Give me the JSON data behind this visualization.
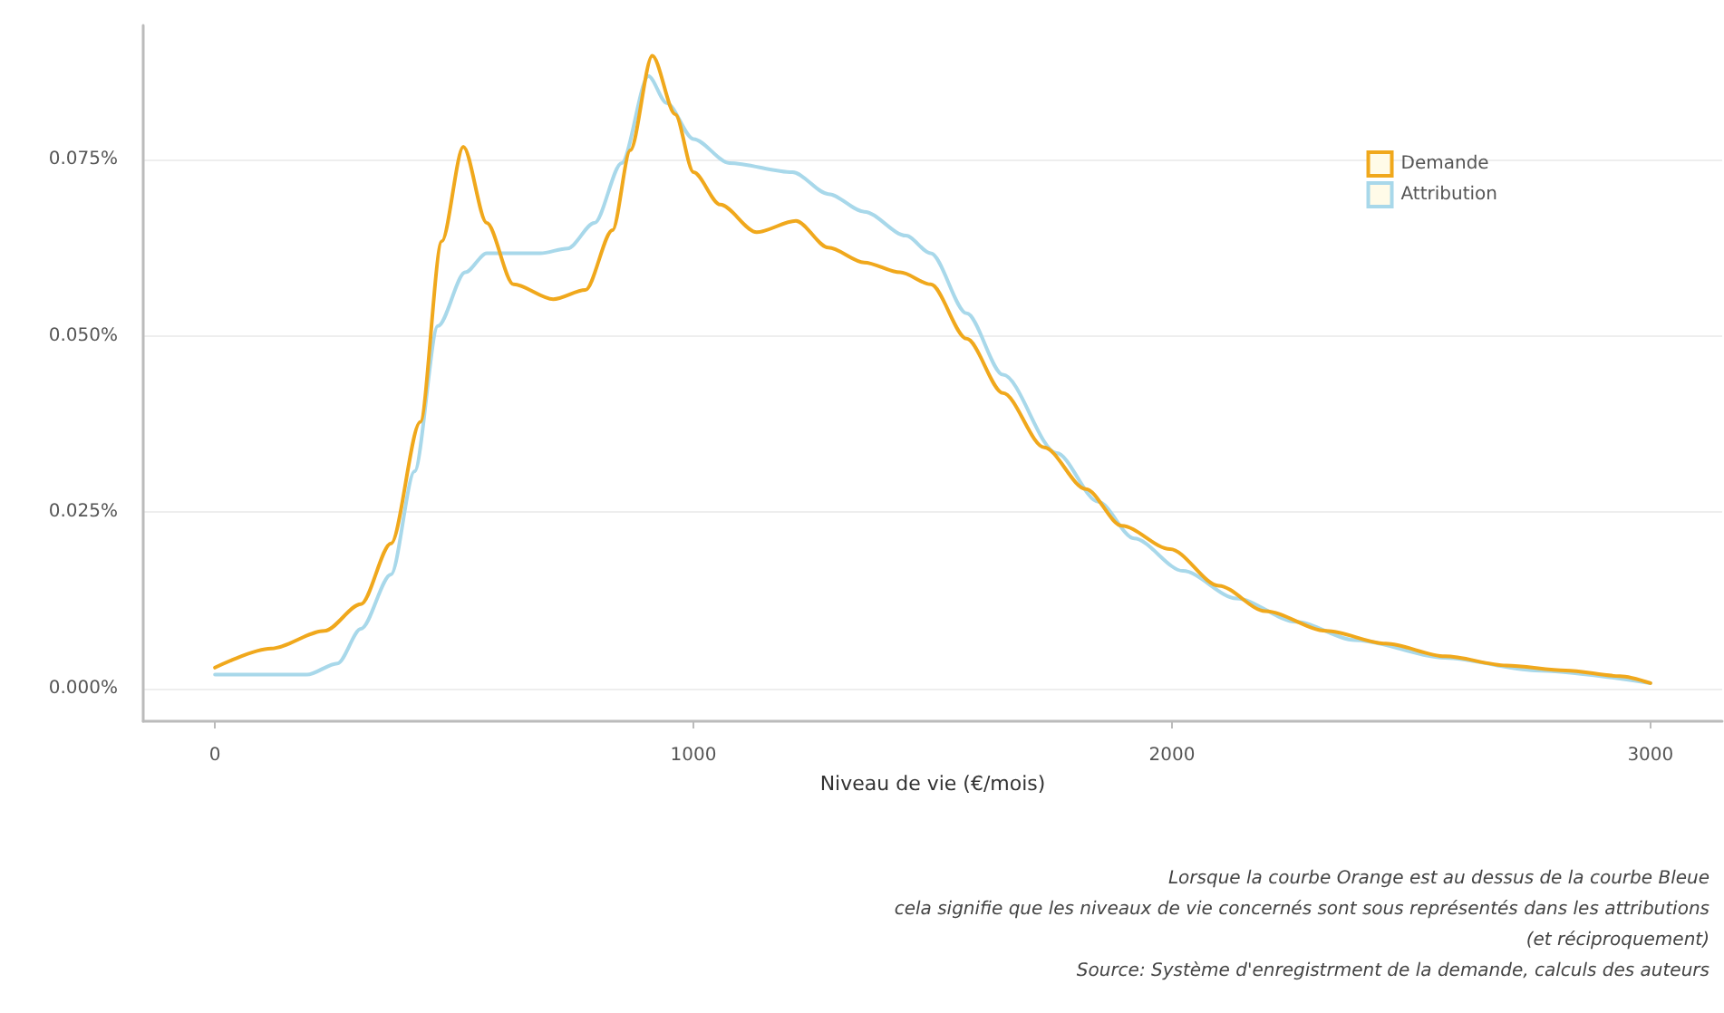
{
  "chart_data": {
    "type": "line",
    "xlabel": "Niveau de vie (€/mois)",
    "annotations": [
      "Lorsque la courbe Orange est au dessus de la courbe Bleue",
      "cela signifie que les niveaux de vie concernés sont sous représentés dans les attributions",
      "(et réciproquement)",
      "Source: Système d'enregistrment de la demande, calculs des auteurs"
    ],
    "series": [
      {
        "name": "Demande",
        "color": "#f0a81c",
        "x": [
          0,
          117,
          229,
          305,
          368,
          429,
          474,
          519,
          568,
          624,
          707,
          774,
          831,
          868,
          914,
          962,
          1000,
          1056,
          1132,
          1214,
          1282,
          1357,
          1432,
          1496,
          1571,
          1647,
          1733,
          1820,
          1895,
          1996,
          2098,
          2195,
          2323,
          2447,
          2571,
          2699,
          2823,
          2936,
          3000
        ],
        "values": [
          0.003,
          0.0057,
          0.0082,
          0.012,
          0.0206,
          0.0378,
          0.0634,
          0.0768,
          0.066,
          0.0573,
          0.0552,
          0.0565,
          0.065,
          0.0763,
          0.0897,
          0.0814,
          0.0732,
          0.0686,
          0.0647,
          0.0663,
          0.0625,
          0.0604,
          0.059,
          0.0573,
          0.0496,
          0.0419,
          0.0342,
          0.0283,
          0.0231,
          0.0198,
          0.0146,
          0.011,
          0.0082,
          0.0064,
          0.0046,
          0.0033,
          0.0026,
          0.0018,
          0.0008
        ]
      },
      {
        "name": "Attribution",
        "color": "#a8d8ea",
        "x": [
          0,
          192,
          256,
          305,
          368,
          417,
          466,
          523,
          568,
          680,
          737,
          793,
          850,
          906,
          944,
          1000,
          1075,
          1207,
          1282,
          1357,
          1444,
          1496,
          1571,
          1647,
          1759,
          1846,
          1921,
          2023,
          2135,
          2259,
          2383,
          2571,
          2759,
          3000
        ],
        "values": [
          0.002,
          0.002,
          0.0036,
          0.0085,
          0.0162,
          0.0308,
          0.0514,
          0.059,
          0.0617,
          0.0617,
          0.0624,
          0.066,
          0.0745,
          0.0868,
          0.083,
          0.0779,
          0.0745,
          0.0732,
          0.0701,
          0.0676,
          0.0642,
          0.0617,
          0.0532,
          0.0445,
          0.0334,
          0.0265,
          0.0213,
          0.0167,
          0.0128,
          0.0095,
          0.0069,
          0.0044,
          0.0026,
          0.0008
        ]
      }
    ],
    "xlim": [
      -150,
      3150
    ],
    "xticks": [
      0,
      1000,
      2000,
      3000
    ],
    "ylim": [
      -0.0046,
      0.094
    ],
    "yticks": [
      {
        "value": 0,
        "label": "0.000%"
      },
      {
        "value": 0.025,
        "label": "0.025%"
      },
      {
        "value": 0.05,
        "label": "0.050%"
      },
      {
        "value": 0.075,
        "label": "0.075%"
      }
    ],
    "grid": "y",
    "legend": "top right",
    "marker": "none",
    "line_style": "solid"
  }
}
